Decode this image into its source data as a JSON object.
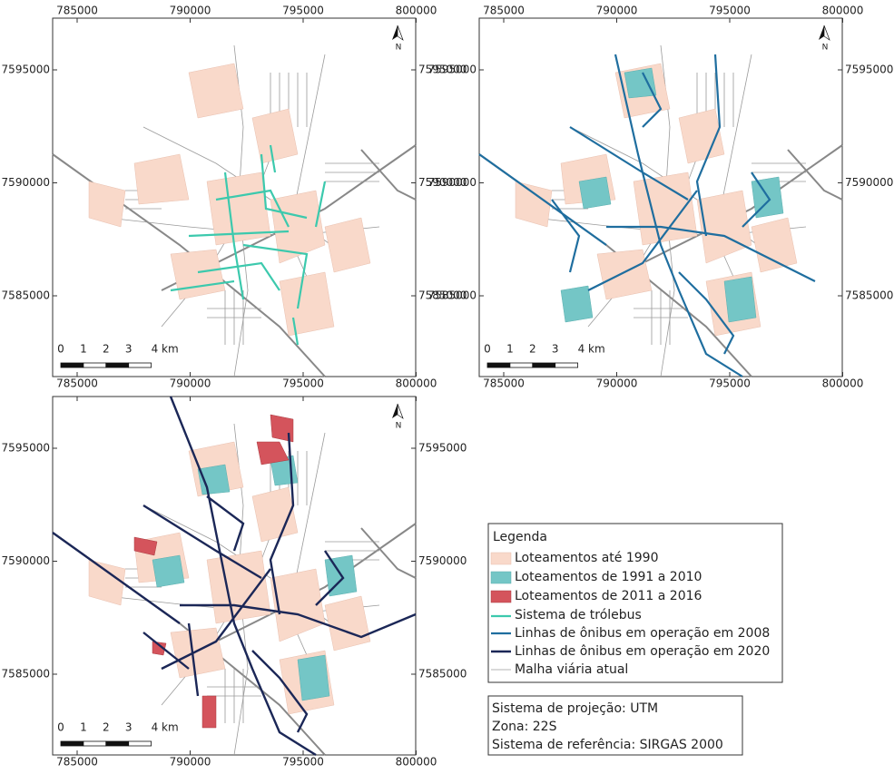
{
  "grid": {
    "eastings": [
      785000,
      790000,
      795000,
      800000
    ],
    "northings": [
      7595000,
      7590000,
      7585000
    ]
  },
  "scale_bar": {
    "labels": [
      "0",
      "1",
      "2",
      "3",
      "4 km"
    ]
  },
  "north": "N",
  "legend": {
    "title": "Legenda",
    "items": [
      "Loteamentos até 1990",
      "Loteamentos de 1991 a 2010",
      "Loteamentos de 2011 a 2016",
      "Sistema de trólebus",
      "Linhas de ônibus em operação em 2008",
      "Linhas de ônibus em operação em 2020",
      "Malha viária atual"
    ]
  },
  "projection": [
    "Sistema de projeção: UTM",
    "Zona: 22S",
    "Sistema de referência: SIRGAS 2000"
  ]
}
